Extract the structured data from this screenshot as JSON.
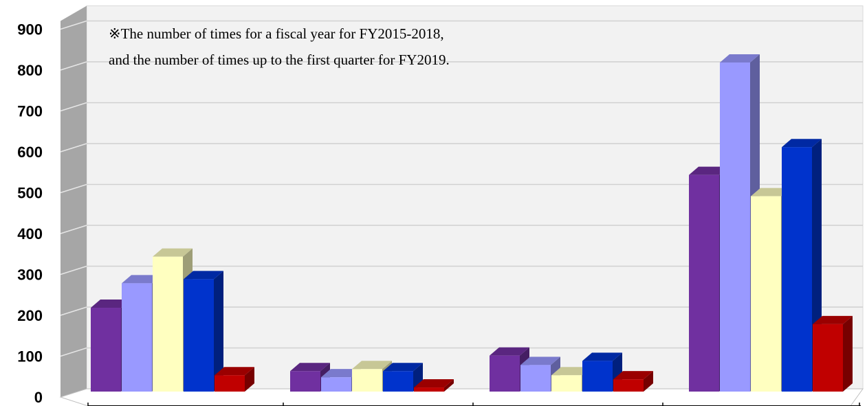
{
  "chart_data": {
    "type": "bar",
    "title": "",
    "xlabel": "",
    "ylabel": "",
    "ylim": [
      0,
      900
    ],
    "yticks": [
      "0",
      "100",
      "200",
      "300",
      "400",
      "500",
      "600",
      "700",
      "800",
      "900"
    ],
    "categories": [
      "",
      "",
      "",
      ""
    ],
    "series": [
      {
        "color": "#7030A0",
        "values": [
          205,
          50,
          88,
          530
        ]
      },
      {
        "color": "#9999FF",
        "values": [
          265,
          35,
          65,
          805
        ]
      },
      {
        "color": "#FFFFC0",
        "values": [
          330,
          55,
          40,
          478
        ]
      },
      {
        "color": "#0033CC",
        "values": [
          275,
          50,
          75,
          598
        ]
      },
      {
        "color": "#C00000",
        "values": [
          40,
          10,
          30,
          165
        ]
      }
    ],
    "grid": true,
    "annotation": {
      "line1": "※The number of times for a fiscal year for FY2015-2018,",
      "line2": "and the number of times up to the first quarter for FY2019."
    }
  }
}
